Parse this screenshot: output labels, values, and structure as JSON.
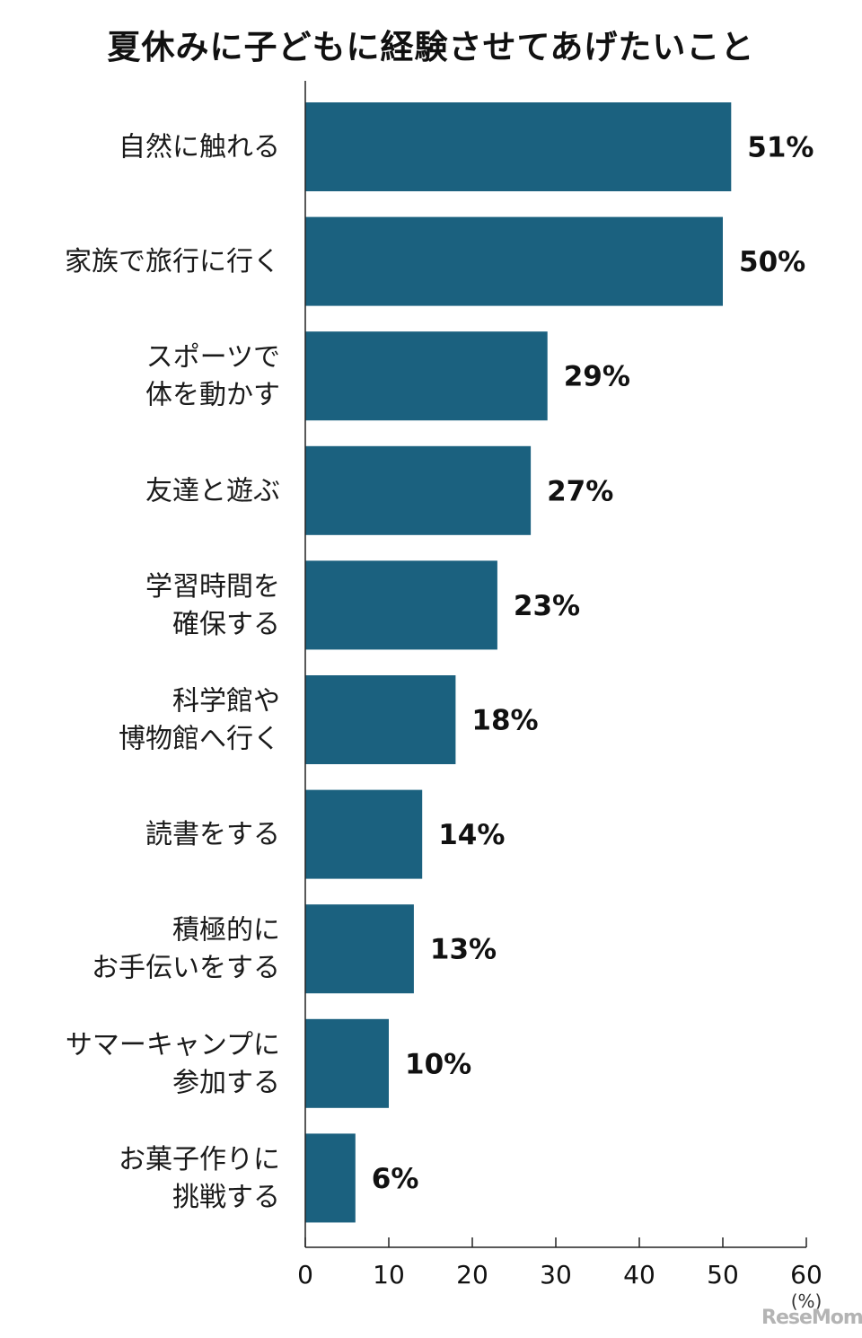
{
  "chart_data": {
    "type": "bar",
    "orientation": "horizontal",
    "title": "夏休みに子どもに経験させてあげたいこと",
    "categories": [
      [
        "自然に触れる"
      ],
      [
        "家族で旅行に行く"
      ],
      [
        "スポーツで",
        "体を動かす"
      ],
      [
        "友達と遊ぶ"
      ],
      [
        "学習時間を",
        "確保する"
      ],
      [
        "科学館や",
        "博物館へ行く"
      ],
      [
        "読書をする"
      ],
      [
        "積極的に",
        "お手伝いをする"
      ],
      [
        "サマーキャンプに",
        "参加する"
      ],
      [
        "お菓子作りに",
        "挑戦する"
      ]
    ],
    "values": [
      51,
      50,
      29,
      27,
      23,
      18,
      14,
      13,
      10,
      6
    ],
    "value_labels": [
      "51%",
      "50%",
      "29%",
      "27%",
      "23%",
      "18%",
      "14%",
      "13%",
      "10%",
      "6%"
    ],
    "xlim": [
      0,
      60
    ],
    "xticks": [
      0,
      10,
      20,
      30,
      40,
      50,
      60
    ],
    "unit": "(%)",
    "bar_color": "#1b617f",
    "grid": false
  },
  "watermark": "ReseMom"
}
